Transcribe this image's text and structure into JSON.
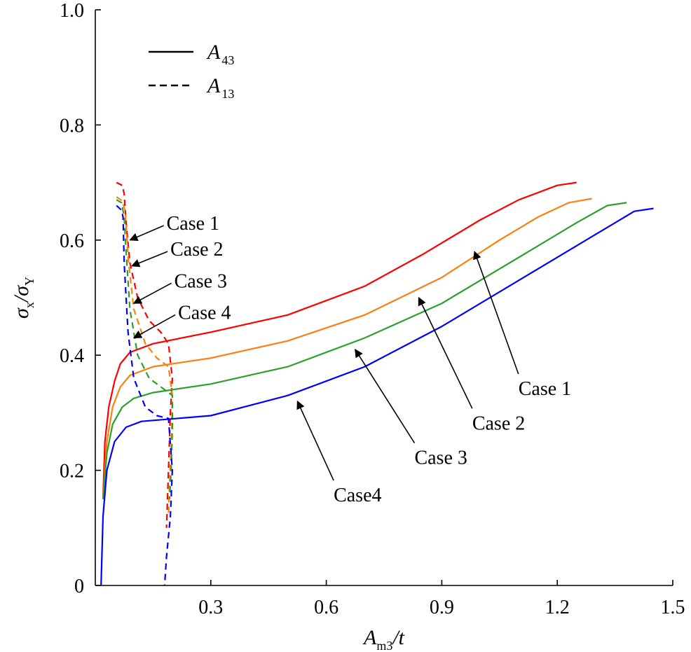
{
  "chart_data": {
    "type": "line",
    "ylabel": {
      "main": "σ",
      "sub1": "x",
      "slash": "/σ",
      "sub2": "Y"
    },
    "xlabel": {
      "main": "A",
      "sub": "m3",
      "rest": "/t"
    },
    "xlim": [
      0,
      1.5
    ],
    "ylim": [
      0,
      1.0
    ],
    "x_ticks": [
      0.3,
      0.6,
      0.9,
      1.2,
      1.5
    ],
    "x_tick_labels": [
      "0.3",
      "0.6",
      "0.9",
      "1.2",
      "1.5"
    ],
    "y_ticks": [
      0,
      0.2,
      0.4,
      0.6,
      0.8,
      1.0
    ],
    "y_tick_labels": [
      "0",
      "0.2",
      "0.4",
      "0.6",
      "0.8",
      "1.0"
    ],
    "legend": [
      {
        "main": "A",
        "sub": "43",
        "style": "solid"
      },
      {
        "main": "A",
        "sub": "13",
        "style": "dashed"
      }
    ],
    "series": [
      {
        "case": "Case 1",
        "color": "#ff0000",
        "A43": [
          [
            0.02,
            0.15
          ],
          [
            0.025,
            0.25
          ],
          [
            0.035,
            0.31
          ],
          [
            0.05,
            0.355
          ],
          [
            0.065,
            0.385
          ],
          [
            0.09,
            0.405
          ],
          [
            0.15,
            0.42
          ],
          [
            0.3,
            0.44
          ],
          [
            0.5,
            0.47
          ],
          [
            0.7,
            0.52
          ],
          [
            0.85,
            0.575
          ],
          [
            1.0,
            0.635
          ],
          [
            1.1,
            0.67
          ],
          [
            1.2,
            0.695
          ],
          [
            1.25,
            0.7
          ]
        ],
        "A13": [
          [
            0.055,
            0.7
          ],
          [
            0.07,
            0.695
          ],
          [
            0.075,
            0.68
          ],
          [
            0.08,
            0.63
          ],
          [
            0.09,
            0.56
          ],
          [
            0.11,
            0.5
          ],
          [
            0.14,
            0.46
          ],
          [
            0.17,
            0.44
          ],
          [
            0.19,
            0.42
          ],
          [
            0.2,
            0.36
          ],
          [
            0.195,
            0.3
          ],
          [
            0.19,
            0.2
          ],
          [
            0.185,
            0.1
          ]
        ]
      },
      {
        "case": "Case 2",
        "color": "#ff7f0e",
        "A43": [
          [
            0.02,
            0.15
          ],
          [
            0.03,
            0.25
          ],
          [
            0.045,
            0.31
          ],
          [
            0.065,
            0.345
          ],
          [
            0.09,
            0.365
          ],
          [
            0.15,
            0.38
          ],
          [
            0.3,
            0.395
          ],
          [
            0.5,
            0.425
          ],
          [
            0.7,
            0.47
          ],
          [
            0.9,
            0.535
          ],
          [
            1.05,
            0.6
          ],
          [
            1.15,
            0.64
          ],
          [
            1.23,
            0.665
          ],
          [
            1.29,
            0.672
          ]
        ],
        "A13": [
          [
            0.055,
            0.675
          ],
          [
            0.07,
            0.668
          ],
          [
            0.078,
            0.65
          ],
          [
            0.085,
            0.57
          ],
          [
            0.1,
            0.48
          ],
          [
            0.13,
            0.42
          ],
          [
            0.16,
            0.395
          ],
          [
            0.19,
            0.38
          ],
          [
            0.2,
            0.33
          ],
          [
            0.198,
            0.25
          ],
          [
            0.193,
            0.18
          ],
          [
            0.19,
            0.12
          ]
        ]
      },
      {
        "case": "Case 3",
        "color": "#2ca02c",
        "A43": [
          [
            0.02,
            0.15
          ],
          [
            0.03,
            0.23
          ],
          [
            0.045,
            0.28
          ],
          [
            0.07,
            0.31
          ],
          [
            0.1,
            0.325
          ],
          [
            0.15,
            0.335
          ],
          [
            0.3,
            0.35
          ],
          [
            0.5,
            0.38
          ],
          [
            0.7,
            0.43
          ],
          [
            0.9,
            0.49
          ],
          [
            1.1,
            0.57
          ],
          [
            1.25,
            0.63
          ],
          [
            1.33,
            0.66
          ],
          [
            1.38,
            0.665
          ]
        ],
        "A13": [
          [
            0.055,
            0.67
          ],
          [
            0.068,
            0.665
          ],
          [
            0.075,
            0.64
          ],
          [
            0.08,
            0.58
          ],
          [
            0.09,
            0.48
          ],
          [
            0.11,
            0.4
          ],
          [
            0.14,
            0.36
          ],
          [
            0.17,
            0.345
          ],
          [
            0.2,
            0.33
          ],
          [
            0.2,
            0.27
          ],
          [
            0.197,
            0.2
          ],
          [
            0.193,
            0.15
          ]
        ]
      },
      {
        "case": "Case 4",
        "color": "#0000ff",
        "A43": [
          [
            0.015,
            0.0
          ],
          [
            0.02,
            0.12
          ],
          [
            0.03,
            0.2
          ],
          [
            0.05,
            0.25
          ],
          [
            0.08,
            0.275
          ],
          [
            0.12,
            0.285
          ],
          [
            0.3,
            0.295
          ],
          [
            0.5,
            0.33
          ],
          [
            0.7,
            0.38
          ],
          [
            0.9,
            0.45
          ],
          [
            1.1,
            0.53
          ],
          [
            1.3,
            0.61
          ],
          [
            1.4,
            0.65
          ],
          [
            1.45,
            0.655
          ]
        ],
        "A13": [
          [
            0.055,
            0.66
          ],
          [
            0.068,
            0.652
          ],
          [
            0.072,
            0.64
          ],
          [
            0.075,
            0.56
          ],
          [
            0.085,
            0.44
          ],
          [
            0.1,
            0.36
          ],
          [
            0.13,
            0.31
          ],
          [
            0.16,
            0.295
          ],
          [
            0.19,
            0.29
          ],
          [
            0.2,
            0.2
          ],
          [
            0.195,
            0.12
          ],
          [
            0.185,
            0.05
          ],
          [
            0.18,
            0.0
          ]
        ]
      }
    ],
    "annotations": [
      {
        "text": "Case 1",
        "group": "A13",
        "label_x": 0.185,
        "label_y": 0.63,
        "arrow_x": 0.09,
        "arrow_y": 0.6
      },
      {
        "text": "Case 2",
        "group": "A13",
        "label_x": 0.195,
        "label_y": 0.585,
        "arrow_x": 0.095,
        "arrow_y": 0.555
      },
      {
        "text": "Case 3",
        "group": "A13",
        "label_x": 0.205,
        "label_y": 0.53,
        "arrow_x": 0.1,
        "arrow_y": 0.49
      },
      {
        "text": "Case 4",
        "group": "A13",
        "label_x": 0.215,
        "label_y": 0.475,
        "arrow_x": 0.1,
        "arrow_y": 0.43
      },
      {
        "text": "Case 1",
        "group": "A43",
        "label_x": 1.11,
        "label_y": 0.365,
        "arrow_x": 0.985,
        "arrow_y": 0.58
      },
      {
        "text": "Case 2",
        "group": "A43",
        "label_x": 0.99,
        "label_y": 0.305,
        "arrow_x": 0.84,
        "arrow_y": 0.5
      },
      {
        "text": "Case 3",
        "group": "A43",
        "label_x": 0.84,
        "label_y": 0.245,
        "arrow_x": 0.675,
        "arrow_y": 0.41
      },
      {
        "text": "Case4",
        "group": "A43",
        "label_x": 0.63,
        "label_y": 0.18,
        "arrow_x": 0.525,
        "arrow_y": 0.32
      }
    ]
  }
}
